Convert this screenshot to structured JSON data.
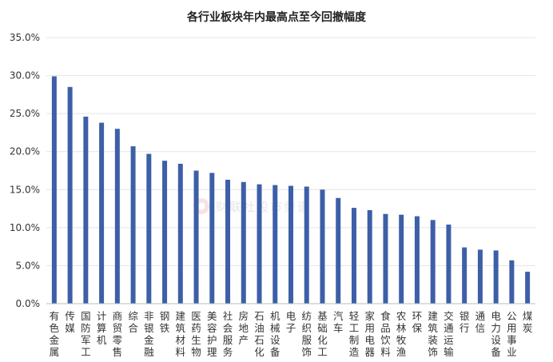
{
  "chart_data": {
    "type": "bar",
    "title": "各行业板块年内最高点至今回撤幅度",
    "xlabel": "",
    "ylabel": "",
    "ylim": [
      0,
      35
    ],
    "yticks": [
      0,
      5,
      10,
      15,
      20,
      25,
      30,
      35
    ],
    "ytick_labels": [
      "0.0%",
      "5.0%",
      "10.0%",
      "15.0%",
      "20.0%",
      "25.0%",
      "30.0%",
      "35.0%"
    ],
    "grid": true,
    "legend": "none",
    "bar_color": "#3d5fa8",
    "categories": [
      "有色金属",
      "传媒",
      "国防军工",
      "计算机",
      "商贸零售",
      "综合",
      "非银金融",
      "钢铁",
      "建筑材料",
      "医药生物",
      "美容护理",
      "社会服务",
      "房地产",
      "石油石化",
      "机械设备",
      "电子",
      "纺织服饰",
      "基础化工",
      "汽车",
      "轻工制造",
      "家用电器",
      "食品饮料",
      "农林牧渔",
      "环保",
      "建筑装饰",
      "交通运输",
      "银行",
      "通信",
      "电力设备",
      "公用事业",
      "煤炭"
    ],
    "values": [
      29.9,
      28.5,
      24.6,
      23.8,
      23.0,
      20.7,
      19.7,
      18.8,
      18.4,
      17.5,
      17.2,
      16.3,
      16.0,
      15.7,
      15.6,
      15.5,
      15.4,
      15.0,
      13.9,
      12.6,
      12.3,
      11.8,
      11.7,
      11.5,
      11.0,
      10.4,
      7.4,
      7.1,
      7.0,
      5.7,
      4.2
    ]
  },
  "watermark": {
    "icon": "cls-logo-icon",
    "text": "财联社股市频道"
  }
}
